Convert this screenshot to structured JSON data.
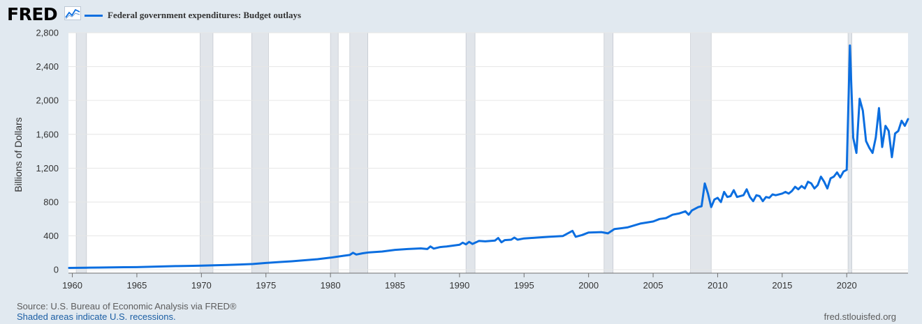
{
  "header": {
    "logo": "FRED",
    "logo_icon": "line-graph-icon",
    "legend_label": "Federal government expenditures: Budget outlays"
  },
  "colors": {
    "series": "#0b6ee0",
    "recession": "#e1e5ea",
    "background": "#e1e9f0",
    "plot": "#ffffff"
  },
  "footer": {
    "source": "Source: U.S. Bureau of Economic Analysis via FRED®",
    "note": "Shaded areas indicate U.S. recessions.",
    "site": "fred.stlouisfed.org"
  },
  "chart_data": {
    "type": "line",
    "title": "",
    "xlabel": "",
    "ylabel": "Billions of Dollars",
    "xlim": [
      1959.7,
      2024.75
    ],
    "ylim": [
      -40,
      2800
    ],
    "yticks": [
      0,
      400,
      800,
      1200,
      1600,
      2000,
      2400,
      2800
    ],
    "ytick_labels": [
      "0",
      "400",
      "800",
      "1,200",
      "1,600",
      "2,000",
      "2,400",
      "2,800"
    ],
    "xticks": [
      1960,
      1965,
      1970,
      1975,
      1980,
      1985,
      1990,
      1995,
      2000,
      2005,
      2010,
      2015,
      2020
    ],
    "grid": true,
    "legend": "top-left",
    "recessions": [
      [
        1960.3,
        1961.1
      ],
      [
        1969.9,
        1970.9
      ],
      [
        1973.9,
        1975.2
      ],
      [
        1980.0,
        1980.6
      ],
      [
        1981.5,
        1982.9
      ],
      [
        1990.5,
        1991.2
      ],
      [
        2001.2,
        2001.9
      ],
      [
        2007.9,
        2009.5
      ],
      [
        2020.1,
        2020.4
      ]
    ],
    "series": [
      {
        "name": "Federal government expenditures: Budget outlays",
        "points": [
          [
            1959.75,
            22
          ],
          [
            1961,
            24
          ],
          [
            1962,
            26
          ],
          [
            1963,
            28
          ],
          [
            1964,
            30
          ],
          [
            1965,
            31
          ],
          [
            1966,
            35
          ],
          [
            1967,
            39
          ],
          [
            1968,
            43
          ],
          [
            1969,
            46
          ],
          [
            1970,
            49
          ],
          [
            1971,
            53
          ],
          [
            1972,
            57
          ],
          [
            1973,
            62
          ],
          [
            1974,
            68
          ],
          [
            1975,
            80
          ],
          [
            1975.5,
            86
          ],
          [
            1976,
            91
          ],
          [
            1977,
            100
          ],
          [
            1978,
            112
          ],
          [
            1979,
            125
          ],
          [
            1980,
            143
          ],
          [
            1981,
            165
          ],
          [
            1981.5,
            175
          ],
          [
            1981.75,
            200
          ],
          [
            1982,
            180
          ],
          [
            1982.5,
            195
          ],
          [
            1983,
            205
          ],
          [
            1984,
            215
          ],
          [
            1985,
            235
          ],
          [
            1986,
            245
          ],
          [
            1987,
            252
          ],
          [
            1987.5,
            245
          ],
          [
            1987.75,
            275
          ],
          [
            1988,
            250
          ],
          [
            1988.5,
            268
          ],
          [
            1989,
            275
          ],
          [
            1990,
            295
          ],
          [
            1990.25,
            320
          ],
          [
            1990.5,
            300
          ],
          [
            1990.75,
            330
          ],
          [
            1991,
            305
          ],
          [
            1991.5,
            340
          ],
          [
            1992,
            335
          ],
          [
            1992.75,
            345
          ],
          [
            1993,
            375
          ],
          [
            1993.25,
            325
          ],
          [
            1993.5,
            350
          ],
          [
            1994,
            355
          ],
          [
            1994.25,
            380
          ],
          [
            1994.5,
            355
          ],
          [
            1995,
            370
          ],
          [
            1996,
            380
          ],
          [
            1997,
            390
          ],
          [
            1998,
            398
          ],
          [
            1998.75,
            460
          ],
          [
            1999,
            390
          ],
          [
            1999.5,
            410
          ],
          [
            2000,
            440
          ],
          [
            2001,
            445
          ],
          [
            2001.5,
            430
          ],
          [
            2002,
            480
          ],
          [
            2003,
            500
          ],
          [
            2004,
            545
          ],
          [
            2005,
            570
          ],
          [
            2005.5,
            600
          ],
          [
            2006,
            610
          ],
          [
            2006.5,
            650
          ],
          [
            2007,
            665
          ],
          [
            2007.5,
            690
          ],
          [
            2007.75,
            650
          ],
          [
            2008,
            700
          ],
          [
            2008.5,
            740
          ],
          [
            2008.75,
            750
          ],
          [
            2009,
            1020
          ],
          [
            2009.25,
            900
          ],
          [
            2009.5,
            740
          ],
          [
            2009.75,
            830
          ],
          [
            2010,
            850
          ],
          [
            2010.25,
            800
          ],
          [
            2010.5,
            920
          ],
          [
            2010.75,
            860
          ],
          [
            2011,
            870
          ],
          [
            2011.25,
            940
          ],
          [
            2011.5,
            860
          ],
          [
            2012,
            880
          ],
          [
            2012.25,
            950
          ],
          [
            2012.5,
            860
          ],
          [
            2012.75,
            810
          ],
          [
            2013,
            880
          ],
          [
            2013.25,
            870
          ],
          [
            2013.5,
            810
          ],
          [
            2013.75,
            860
          ],
          [
            2014,
            850
          ],
          [
            2014.25,
            890
          ],
          [
            2014.5,
            880
          ],
          [
            2015,
            900
          ],
          [
            2015.25,
            920
          ],
          [
            2015.5,
            900
          ],
          [
            2015.75,
            930
          ],
          [
            2016,
            980
          ],
          [
            2016.25,
            950
          ],
          [
            2016.5,
            990
          ],
          [
            2016.75,
            960
          ],
          [
            2017,
            1040
          ],
          [
            2017.25,
            1020
          ],
          [
            2017.5,
            960
          ],
          [
            2017.75,
            1000
          ],
          [
            2018,
            1100
          ],
          [
            2018.25,
            1040
          ],
          [
            2018.5,
            960
          ],
          [
            2018.75,
            1080
          ],
          [
            2019,
            1100
          ],
          [
            2019.25,
            1150
          ],
          [
            2019.5,
            1090
          ],
          [
            2019.75,
            1160
          ],
          [
            2020,
            1180
          ],
          [
            2020.25,
            2650
          ],
          [
            2020.5,
            1560
          ],
          [
            2020.75,
            1380
          ],
          [
            2021,
            2020
          ],
          [
            2021.25,
            1880
          ],
          [
            2021.5,
            1520
          ],
          [
            2021.75,
            1440
          ],
          [
            2022,
            1380
          ],
          [
            2022.25,
            1560
          ],
          [
            2022.5,
            1910
          ],
          [
            2022.75,
            1450
          ],
          [
            2023,
            1700
          ],
          [
            2023.25,
            1640
          ],
          [
            2023.5,
            1330
          ],
          [
            2023.75,
            1610
          ],
          [
            2024,
            1640
          ],
          [
            2024.25,
            1760
          ],
          [
            2024.5,
            1700
          ],
          [
            2024.75,
            1780
          ]
        ]
      }
    ]
  }
}
